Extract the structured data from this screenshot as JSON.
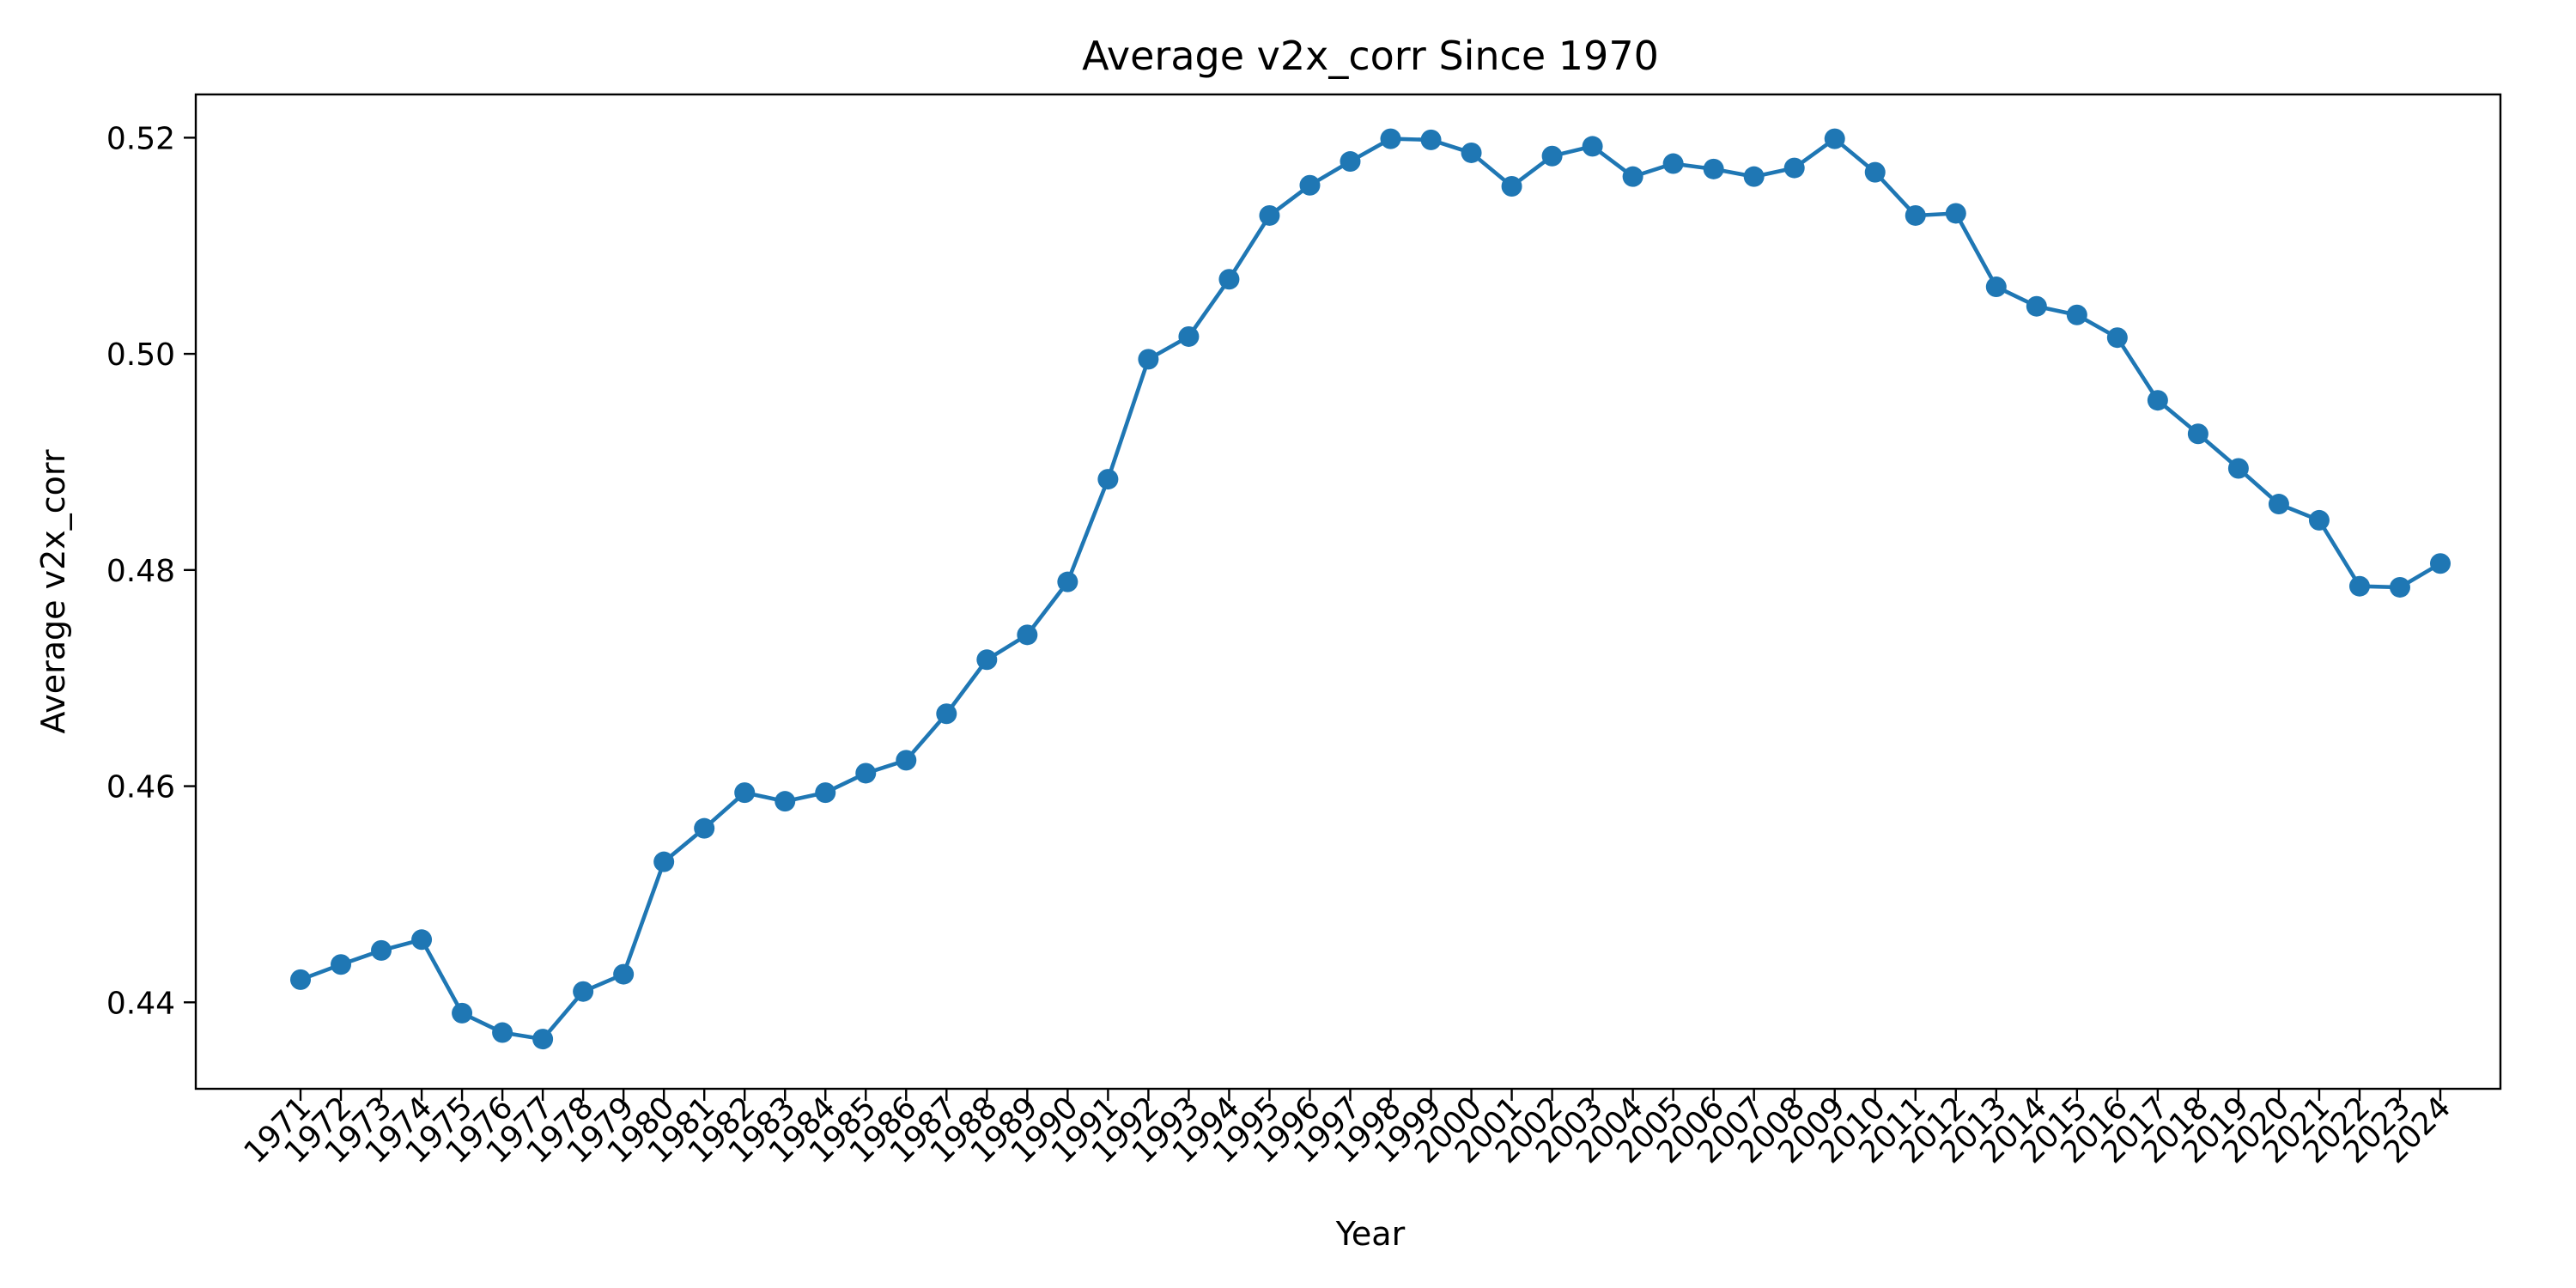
{
  "chart_data": {
    "type": "line",
    "title": "Average v2x_corr Since 1970",
    "xlabel": "Year",
    "ylabel": "Average v2x_corr",
    "ylim": [
      0.432,
      0.524
    ],
    "yticks": [
      "0.44",
      "0.46",
      "0.48",
      "0.50",
      "0.52"
    ],
    "grid": false,
    "marker": "circle",
    "color": "#1f77b4",
    "x": [
      "1971",
      "1972",
      "1973",
      "1974",
      "1975",
      "1976",
      "1977",
      "1978",
      "1979",
      "1980",
      "1981",
      "1982",
      "1983",
      "1984",
      "1985",
      "1986",
      "1987",
      "1988",
      "1989",
      "1990",
      "1991",
      "1992",
      "1993",
      "1994",
      "1995",
      "1996",
      "1997",
      "1998",
      "1999",
      "2000",
      "2001",
      "2002",
      "2003",
      "2004",
      "2005",
      "2006",
      "2007",
      "2008",
      "2009",
      "2010",
      "2011",
      "2012",
      "2013",
      "2014",
      "2015",
      "2016",
      "2017",
      "2018",
      "2019",
      "2020",
      "2021",
      "2022",
      "2023",
      "2024"
    ],
    "series": [
      {
        "values": [
          0.4421,
          0.4435,
          0.4448,
          0.4458,
          0.439,
          0.4372,
          0.4366,
          0.441,
          0.4426,
          0.453,
          0.4561,
          0.4594,
          0.4586,
          0.4594,
          0.4612,
          0.4624,
          0.4667,
          0.4717,
          0.474,
          0.4789,
          0.4884,
          0.4995,
          0.5016,
          0.5069,
          0.5128,
          0.5156,
          0.5178,
          0.5199,
          0.5198,
          0.5186,
          0.5155,
          0.5183,
          0.5192,
          0.5164,
          0.5176,
          0.5171,
          0.5164,
          0.5172,
          0.5199,
          0.5168,
          0.5128,
          0.513,
          0.5062,
          0.5044,
          0.5036,
          0.5015,
          0.4957,
          0.4926,
          0.4894,
          0.4861,
          0.4846,
          0.4785,
          0.4784,
          0.4806
        ]
      }
    ]
  }
}
